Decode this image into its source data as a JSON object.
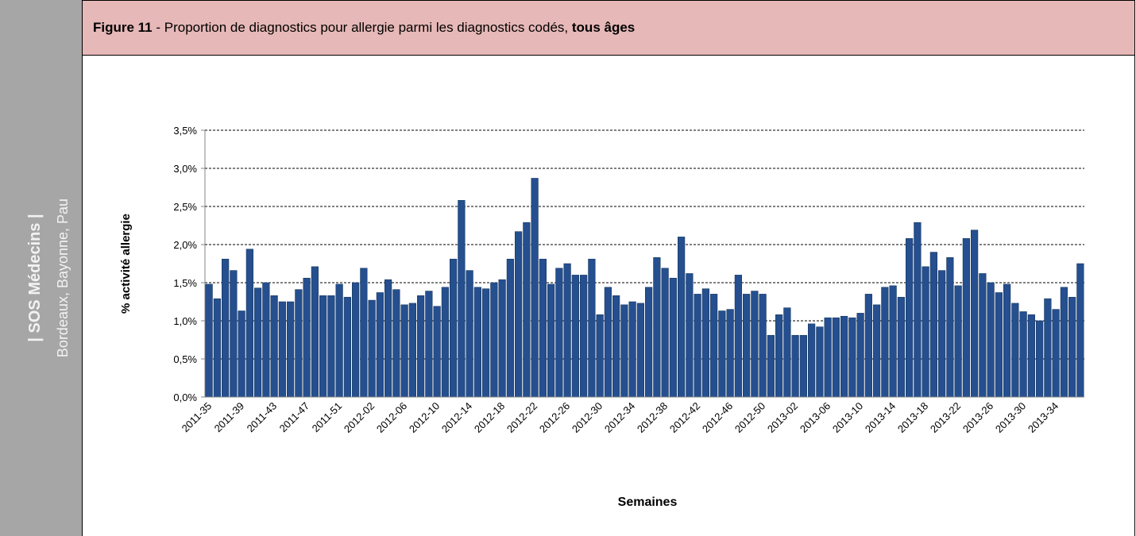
{
  "sidebar": {
    "title": "| SOS Médecins |",
    "subtitle": "Bordeaux, Bayonne, Pau"
  },
  "header": {
    "figure_label": "Figure 11",
    "title": "- Proportion de diagnostics pour allergie parmi les diagnostics codés,",
    "title_bold": "tous âges"
  },
  "chart_data": {
    "type": "bar",
    "y_label": "% activité allergie",
    "x_label": "Semaines",
    "color": "#254f8f",
    "grid": true,
    "ylim": [
      0,
      3.5
    ],
    "yticks": [
      {
        "value": 0,
        "label": "0,0%"
      },
      {
        "value": 0.5,
        "label": "0,5%"
      },
      {
        "value": 1,
        "label": "1,0%"
      },
      {
        "value": 1.5,
        "label": "1,5%"
      },
      {
        "value": 2,
        "label": "2,0%"
      },
      {
        "value": 2.5,
        "label": "2,5%"
      },
      {
        "value": 3,
        "label": "3,0%"
      },
      {
        "value": 3.5,
        "label": "3,5%"
      }
    ],
    "categories": [
      "2011-35",
      null,
      null,
      null,
      "2011-39",
      null,
      null,
      null,
      "2011-43",
      null,
      null,
      null,
      "2011-47",
      null,
      null,
      null,
      "2011-51",
      null,
      null,
      null,
      "2012-02",
      null,
      null,
      null,
      "2012-06",
      null,
      null,
      null,
      "2012-10",
      null,
      null,
      null,
      "2012-14",
      null,
      null,
      null,
      "2012-18",
      null,
      null,
      null,
      "2012-22",
      null,
      null,
      null,
      "2012-26",
      null,
      null,
      null,
      "2012-30",
      null,
      null,
      null,
      "2012-34",
      null,
      null,
      null,
      "2012-38",
      null,
      null,
      null,
      "2012-42",
      null,
      null,
      null,
      "2012-46",
      null,
      null,
      null,
      "2012-50",
      null,
      null,
      null,
      "2013-02",
      null,
      null,
      null,
      "2013-06",
      null,
      null,
      null,
      "2013-10",
      null,
      null,
      null,
      "2013-14",
      null,
      null,
      null,
      "2013-18",
      null,
      null,
      null,
      "2013-22",
      null,
      null,
      null,
      "2013-26",
      null,
      null,
      null,
      "2013-30",
      null,
      null,
      null,
      "2013-34",
      null,
      null,
      null
    ],
    "values": [
      1.48,
      1.29,
      1.81,
      1.66,
      1.13,
      1.94,
      1.43,
      1.5,
      1.33,
      1.25,
      1.25,
      1.41,
      1.56,
      1.71,
      1.33,
      1.33,
      1.48,
      1.31,
      1.5,
      1.69,
      1.27,
      1.37,
      1.54,
      1.41,
      1.21,
      1.23,
      1.33,
      1.39,
      1.19,
      1.44,
      1.81,
      2.58,
      1.66,
      1.44,
      1.42,
      1.5,
      1.54,
      1.81,
      2.17,
      2.29,
      2.87,
      1.81,
      1.48,
      1.69,
      1.75,
      1.6,
      1.6,
      1.81,
      1.08,
      1.44,
      1.33,
      1.21,
      1.25,
      1.23,
      1.44,
      1.83,
      1.69,
      1.56,
      2.1,
      1.62,
      1.35,
      1.42,
      1.35,
      1.13,
      1.15,
      1.6,
      1.35,
      1.39,
      1.35,
      0.81,
      1.08,
      1.17,
      0.81,
      0.81,
      0.96,
      0.92,
      1.04,
      1.04,
      1.06,
      1.04,
      1.1,
      1.35,
      1.21,
      1.44,
      1.46,
      1.31,
      2.08,
      2.29,
      1.71,
      1.9,
      1.66,
      1.83,
      1.46,
      2.08,
      2.19,
      1.62,
      1.5,
      1.37,
      1.48,
      1.23,
      1.12,
      1.08,
      1.0,
      1.29,
      1.15,
      1.44,
      1.31,
      1.75
    ]
  }
}
